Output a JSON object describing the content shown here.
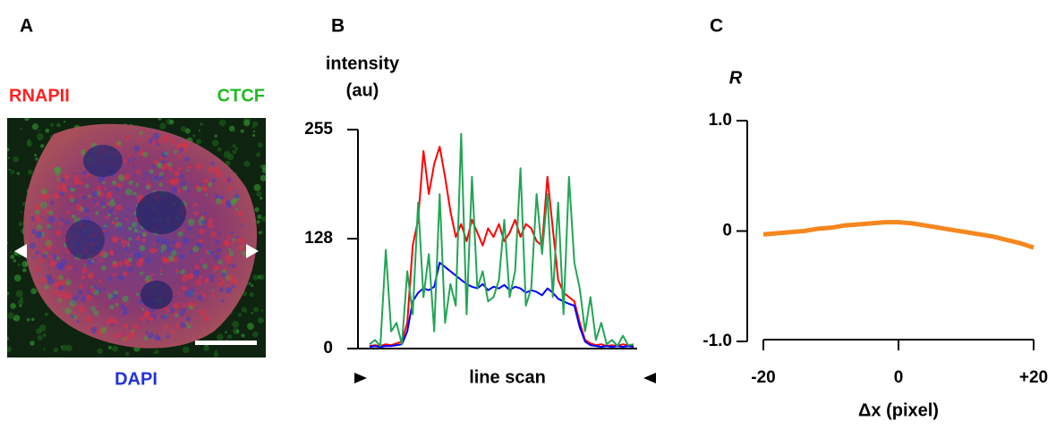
{
  "figure": {
    "panel_a": {
      "letter": "A",
      "red_label": "RNAPII",
      "green_label": "CTCF",
      "blue_label": "DAPI"
    }
  },
  "chart_data": [
    {
      "type": "line",
      "letter": "B",
      "ylabel": [
        "intensity",
        "(au)"
      ],
      "xlabel": "line scan",
      "x": [
        0,
        1,
        2,
        3,
        4,
        5,
        6,
        7,
        8,
        9,
        10,
        11,
        12,
        13,
        14,
        15,
        16,
        17,
        18,
        19,
        20,
        21,
        22,
        23,
        24,
        25,
        26,
        27,
        28,
        29,
        30,
        31,
        32,
        33,
        34,
        35,
        36,
        37,
        38,
        39,
        40,
        41,
        42,
        43,
        44,
        45,
        46,
        47,
        48,
        49
      ],
      "xlim": [
        0,
        49
      ],
      "ylim": [
        0,
        255
      ],
      "yticks": [
        0,
        128,
        255
      ],
      "series": [
        {
          "color": "#ff0000",
          "values": [
            3,
            4,
            3,
            5,
            4,
            6,
            8,
            30,
            120,
            150,
            230,
            180,
            215,
            235,
            200,
            160,
            130,
            145,
            125,
            150,
            135,
            120,
            140,
            130,
            145,
            125,
            135,
            150,
            130,
            145,
            140,
            125,
            120,
            200,
            140,
            80,
            65,
            60,
            55,
            30,
            10,
            6,
            4,
            5,
            3,
            4,
            3,
            5,
            4,
            3
          ]
        },
        {
          "color": "#0000ff",
          "values": [
            2,
            3,
            2,
            3,
            3,
            4,
            5,
            20,
            55,
            65,
            70,
            68,
            72,
            100,
            95,
            90,
            85,
            80,
            75,
            72,
            70,
            75,
            68,
            72,
            70,
            74,
            68,
            72,
            70,
            65,
            68,
            66,
            62,
            70,
            65,
            58,
            55,
            52,
            50,
            25,
            8,
            4,
            3,
            2,
            3,
            2,
            3,
            2,
            3,
            2
          ]
        },
        {
          "color": "#22a555",
          "values": [
            5,
            10,
            3,
            115,
            20,
            30,
            5,
            90,
            40,
            170,
            60,
            110,
            20,
            180,
            30,
            75,
            50,
            250,
            40,
            200,
            70,
            90,
            55,
            60,
            80,
            150,
            60,
            90,
            210,
            50,
            70,
            180,
            110,
            180,
            60,
            170,
            40,
            200,
            100,
            70,
            20,
            60,
            10,
            30,
            5,
            10,
            3,
            15,
            4,
            5
          ]
        }
      ]
    },
    {
      "type": "line",
      "letter": "C",
      "ylabel": "R",
      "xlabel": "Δx (pixel)",
      "x": [
        -20,
        -18,
        -16,
        -14,
        -12,
        -10,
        -8,
        -6,
        -4,
        -2,
        0,
        2,
        4,
        6,
        8,
        10,
        12,
        14,
        16,
        18,
        20
      ],
      "xlim": [
        -20,
        20
      ],
      "xticks": [
        -20,
        0,
        {
          "value": 20,
          "label": "+20"
        }
      ],
      "ylim": [
        -1,
        1
      ],
      "yticks": [
        {
          "value": -1,
          "label": "-1.0"
        },
        0,
        {
          "value": 1,
          "label": "1.0"
        }
      ],
      "series": [
        {
          "color": "#f5871f",
          "values": [
            -0.03,
            -0.02,
            -0.01,
            0,
            0.02,
            0.03,
            0.05,
            0.06,
            0.07,
            0.08,
            0.08,
            0.07,
            0.05,
            0.03,
            0.01,
            -0.01,
            -0.03,
            -0.05,
            -0.08,
            -0.11,
            -0.15
          ]
        }
      ]
    }
  ]
}
